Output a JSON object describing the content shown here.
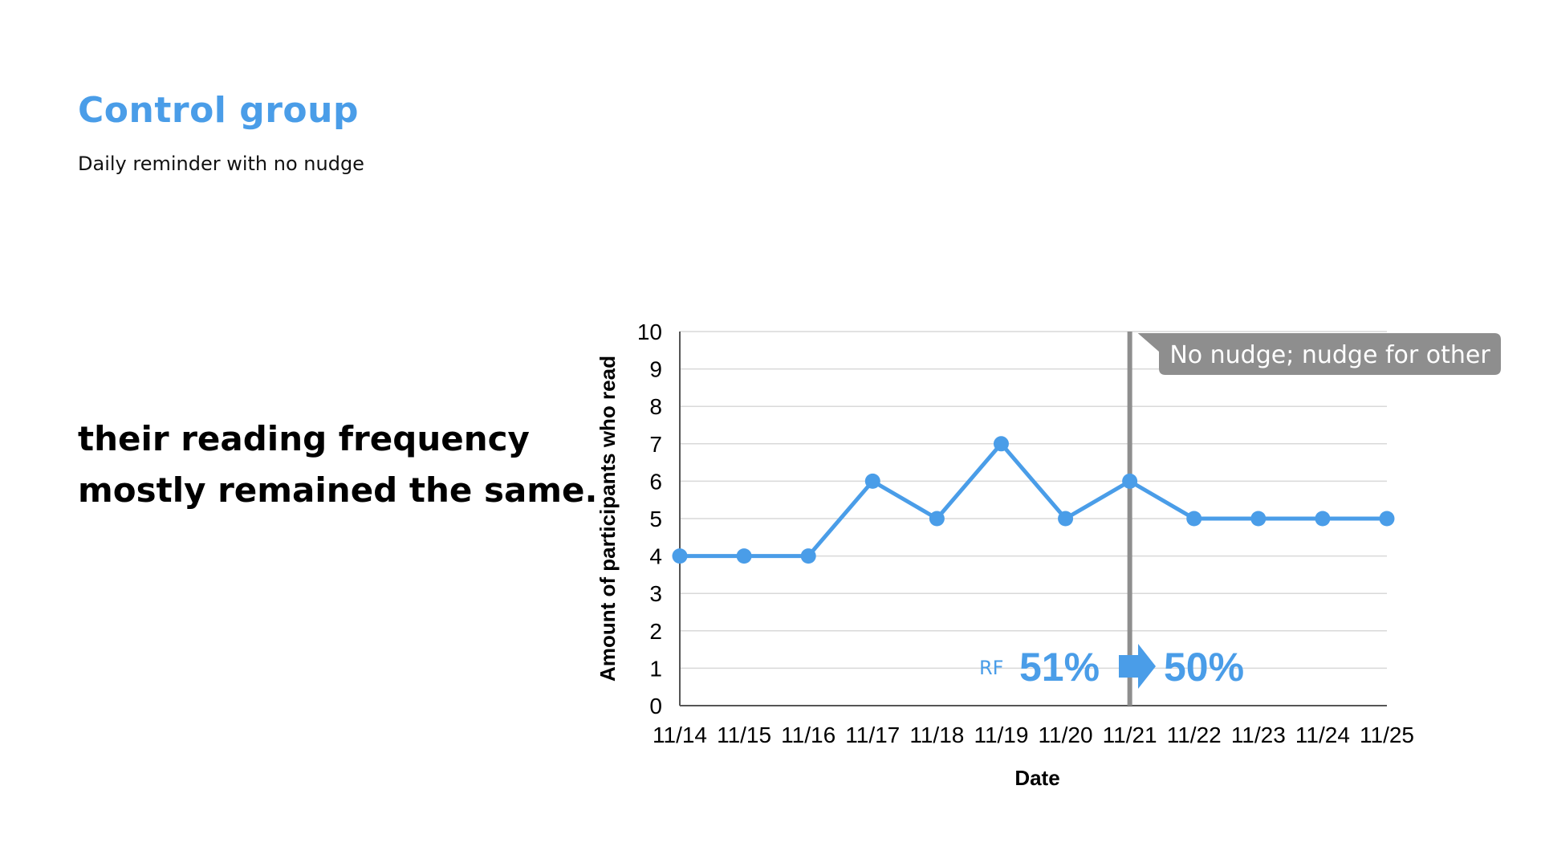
{
  "slide": {
    "title": "Control group",
    "subtitle": "Daily reminder with no nudge",
    "statement_line1": "their reading frequency",
    "statement_line2": "mostly remained the same."
  },
  "colors": {
    "accent": "#4a9de8",
    "marker_line": "#8e8e8e",
    "grid": "#d9d9d9"
  },
  "chart_data": {
    "type": "line",
    "categories": [
      "11/14",
      "11/15",
      "11/16",
      "11/17",
      "11/18",
      "11/19",
      "11/20",
      "11/21",
      "11/22",
      "11/23",
      "11/24",
      "11/25"
    ],
    "series": [
      {
        "values": [
          4,
          4,
          4,
          6,
          5,
          7,
          5,
          6,
          5,
          5,
          5,
          5
        ]
      }
    ],
    "xlabel": "Date",
    "ylabel": "Amount of participants who read",
    "ylim": [
      0,
      10
    ],
    "yticks": [
      0,
      1,
      2,
      3,
      4,
      5,
      6,
      7,
      8,
      9,
      10
    ],
    "grid": true,
    "marker": {
      "category": "11/21",
      "label": "No nudge; nudge for other"
    },
    "annotation": {
      "label": "RF",
      "before": "51%",
      "after": "50%"
    }
  }
}
